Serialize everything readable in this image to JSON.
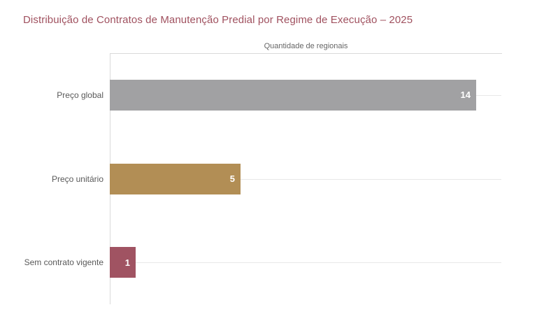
{
  "title": "Distribuição de Contratos de Manutenção Predial por Regime de Execução – 2025",
  "colors": {
    "title_text": "#a0515f",
    "axis_line": "#d9d9d9",
    "gridline": "#e8e8e8",
    "category_label": "#595959",
    "axis_title": "#666666",
    "value_label": "#ffffff",
    "bar_gray": "#a1a1a3",
    "bar_gold": "#b28e55",
    "bar_maroon": "#a05362"
  },
  "chart_data": {
    "type": "bar",
    "orientation": "horizontal",
    "title": "Distribuição de Contratos de Manutenção Predial por Regime de Execução – 2025",
    "axis_title": "Quantidade de regionais",
    "categories": [
      "Preço global",
      "Preço unitário",
      "Sem contrato vigente"
    ],
    "values": [
      14,
      5,
      1
    ],
    "bar_colors": [
      "#a1a1a3",
      "#b28e55",
      "#a05362"
    ],
    "xlim": [
      0,
      15
    ],
    "grid": true,
    "gridlines": "horizontal-per-category",
    "value_labels": "inside-end",
    "axis_title_position": "top-center",
    "legend": "none"
  }
}
